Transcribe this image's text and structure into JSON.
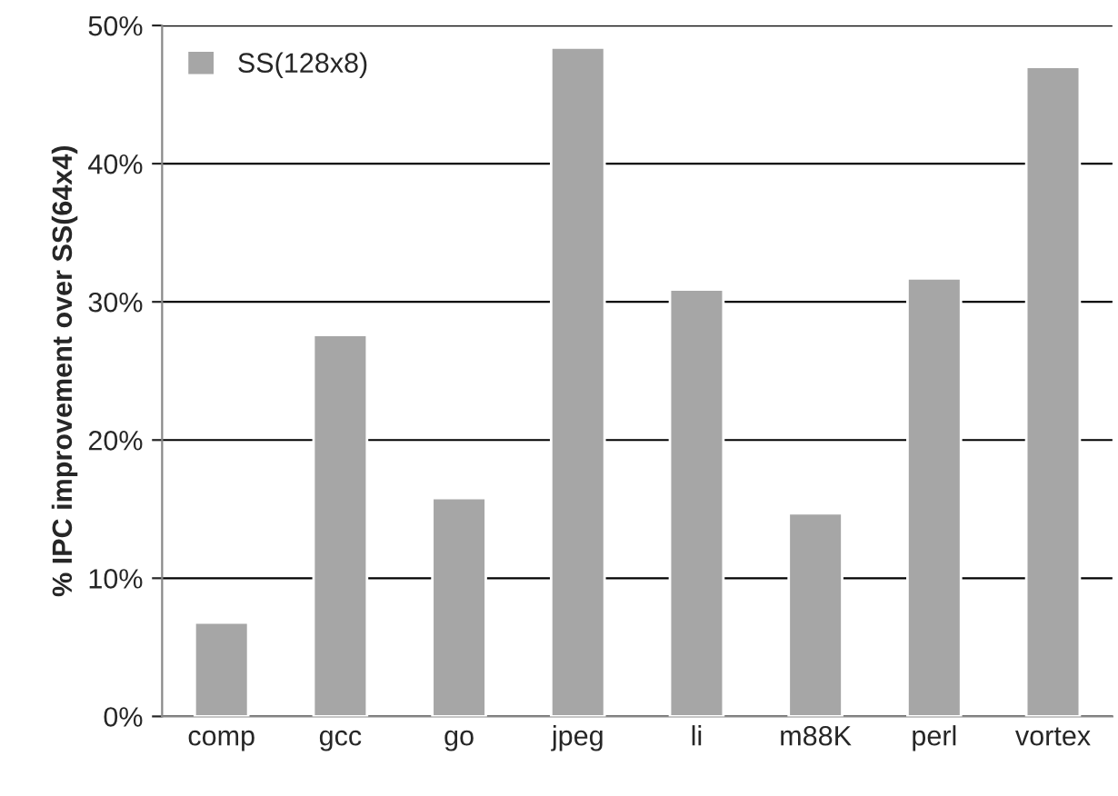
{
  "chart_data": {
    "type": "bar",
    "ylabel": "% IPC improvement over SS(64x4)",
    "categories": [
      "comp",
      "gcc",
      "go",
      "jpeg",
      "li",
      "m88K",
      "perl",
      "vortex"
    ],
    "series": [
      {
        "name": "SS(128x8)",
        "color": "#a6a6a6",
        "values": [
          6.8,
          27.6,
          15.8,
          48.4,
          30.9,
          14.7,
          31.7,
          47.0
        ]
      }
    ],
    "ylim": [
      0,
      50
    ],
    "yticks": [
      {
        "value": 0,
        "label": "0%"
      },
      {
        "value": 10,
        "label": "10%"
      },
      {
        "value": 20,
        "label": "20%"
      },
      {
        "value": 30,
        "label": "30%"
      },
      {
        "value": 40,
        "label": "40%"
      },
      {
        "value": 50,
        "label": "50%"
      }
    ],
    "grid": "y",
    "legend": "top left"
  }
}
